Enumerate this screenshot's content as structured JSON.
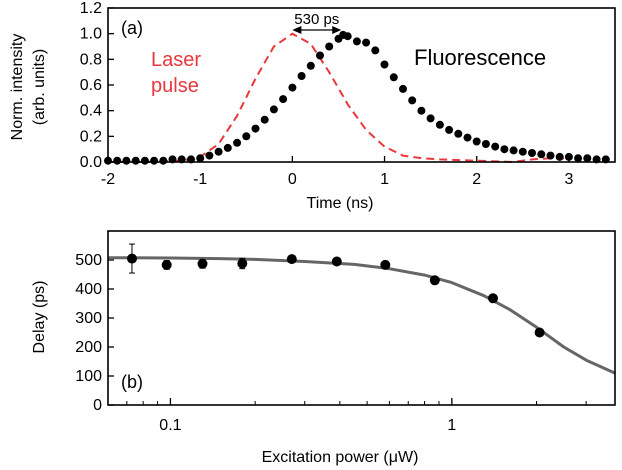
{
  "chart_data": [
    {
      "panel": "(a)",
      "type": "line",
      "xlabel": "Time (ns)",
      "ylabel_line1": "Norm. intensity",
      "ylabel_line2": "(arb. units)",
      "xlim": [
        -2,
        3.5
      ],
      "ylim": [
        0,
        1.2
      ],
      "x_ticks": [
        -2,
        -1,
        0,
        1,
        2,
        3
      ],
      "y_ticks": [
        0.0,
        0.2,
        0.4,
        0.6,
        0.8,
        1.0,
        1.2
      ],
      "y_tick_labels": [
        "0.0",
        "0.2",
        "0.4",
        "0.6",
        "0.8",
        "1.0",
        "1.2"
      ],
      "annotations": {
        "delay_text": "530 ps",
        "delay_from": 0.0,
        "delay_to": 0.53,
        "laser_line1": "Laser",
        "laser_line2": "pulse",
        "fluorescence": "Fluorescence"
      },
      "series": [
        {
          "style": "dashed",
          "color": "#e8373d",
          "x": [
            -2.0,
            -1.6,
            -1.2,
            -1.0,
            -0.8,
            -0.6,
            -0.4,
            -0.2,
            0.0,
            0.2,
            0.4,
            0.6,
            0.8,
            1.0,
            1.2,
            1.4,
            1.6,
            2.0,
            2.4,
            2.6,
            2.8,
            3.0
          ],
          "y": [
            0.0,
            0.0,
            0.01,
            0.04,
            0.14,
            0.36,
            0.65,
            0.9,
            1.0,
            0.92,
            0.7,
            0.45,
            0.25,
            0.12,
            0.05,
            0.03,
            0.02,
            0.01,
            0.0,
            0.02,
            0.03,
            0.03
          ]
        },
        {
          "style": "markers",
          "color": "#000000",
          "x": [
            -2.0,
            -1.9,
            -1.8,
            -1.7,
            -1.6,
            -1.5,
            -1.4,
            -1.3,
            -1.2,
            -1.1,
            -1.0,
            -0.9,
            -0.8,
            -0.7,
            -0.6,
            -0.5,
            -0.4,
            -0.3,
            -0.2,
            -0.1,
            0.0,
            0.1,
            0.2,
            0.3,
            0.4,
            0.5,
            0.55,
            0.6,
            0.7,
            0.8,
            0.9,
            1.0,
            1.1,
            1.2,
            1.3,
            1.4,
            1.5,
            1.6,
            1.7,
            1.8,
            1.9,
            2.0,
            2.1,
            2.2,
            2.3,
            2.4,
            2.5,
            2.6,
            2.7,
            2.8,
            2.9,
            3.0,
            3.1,
            3.2,
            3.3,
            3.4
          ],
          "y": [
            0.01,
            0.01,
            0.01,
            0.01,
            0.01,
            0.01,
            0.01,
            0.02,
            0.02,
            0.02,
            0.03,
            0.05,
            0.08,
            0.11,
            0.15,
            0.2,
            0.26,
            0.33,
            0.41,
            0.49,
            0.58,
            0.67,
            0.75,
            0.83,
            0.9,
            0.96,
            0.99,
            0.98,
            0.94,
            0.93,
            0.87,
            0.76,
            0.66,
            0.57,
            0.48,
            0.4,
            0.34,
            0.29,
            0.25,
            0.22,
            0.19,
            0.16,
            0.14,
            0.12,
            0.1,
            0.09,
            0.08,
            0.07,
            0.06,
            0.05,
            0.04,
            0.04,
            0.03,
            0.03,
            0.02,
            0.02
          ]
        }
      ]
    },
    {
      "panel": "(b)",
      "type": "scatter",
      "xscale": "log",
      "xlabel": "Excitation power (μW)",
      "ylabel": "Delay (ps)",
      "xlim": [
        0.06,
        3.8
      ],
      "ylim": [
        0,
        600
      ],
      "x_ticks": [
        0.1,
        1
      ],
      "x_tick_labels": [
        "0.1",
        "1"
      ],
      "y_ticks": [
        0,
        100,
        200,
        300,
        400,
        500
      ],
      "points": {
        "x": [
          0.073,
          0.097,
          0.13,
          0.18,
          0.27,
          0.39,
          0.58,
          0.87,
          1.4,
          2.05
        ],
        "y": [
          505,
          483,
          487,
          488,
          503,
          495,
          483,
          430,
          368,
          250
        ],
        "err": [
          50,
          15,
          15,
          18,
          8,
          8,
          12,
          8,
          10,
          8
        ]
      },
      "fit": {
        "color": "#666666",
        "x": [
          0.06,
          0.1,
          0.15,
          0.2,
          0.3,
          0.45,
          0.6,
          0.8,
          1.0,
          1.3,
          1.6,
          2.0,
          2.5,
          3.0,
          3.8
        ],
        "y": [
          508,
          507,
          505,
          502,
          495,
          485,
          470,
          448,
          422,
          377,
          330,
          268,
          200,
          155,
          110
        ]
      }
    }
  ]
}
